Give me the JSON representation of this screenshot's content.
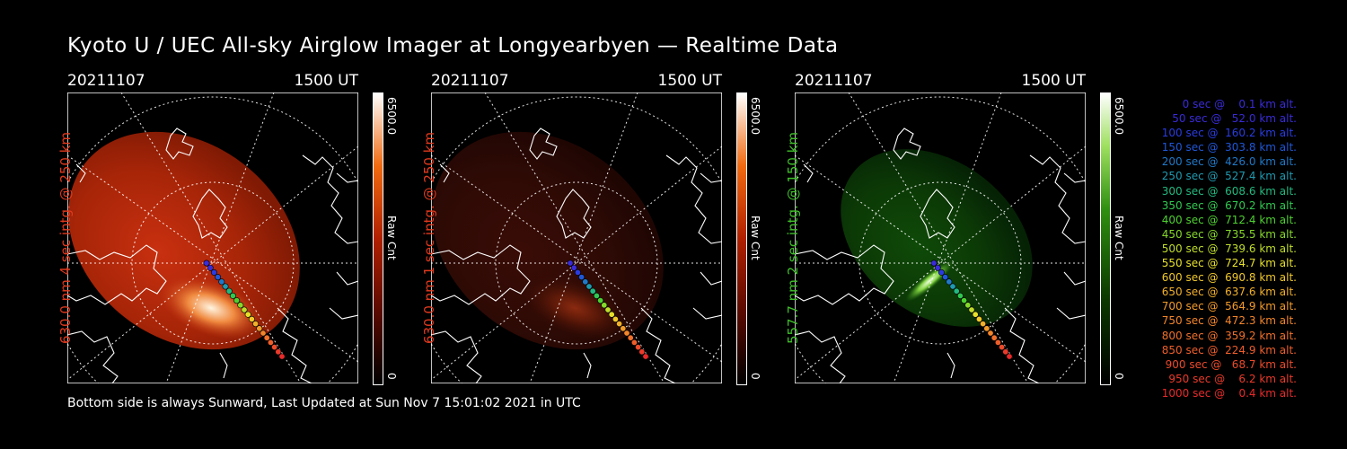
{
  "title": "Kyoto U / UEC All-sky Airglow Imager at Longyearbyen — Realtime Data",
  "footer": "Bottom side is always Sunward, Last Updated at Sun Nov  7 15:01:02 2021 in UTC",
  "panels": [
    {
      "date": "20211107",
      "time": "1500 UT",
      "label": "630.0 nm 4 sec intg. @ 250 km",
      "label_color": "#e03a1e",
      "cbar_max": "6500.0",
      "cbar_unit": "Raw Cnt",
      "cbar_zero": "0",
      "theme": "red",
      "intensity": "bright"
    },
    {
      "date": "20211107",
      "time": "1500 UT",
      "label": "630.0 nm 1 sec intg. @ 250 km",
      "label_color": "#e03a1e",
      "cbar_max": "6500.0",
      "cbar_unit": "Raw Cnt",
      "cbar_zero": "0",
      "theme": "red",
      "intensity": "dim"
    },
    {
      "date": "20211107",
      "time": "1500 UT",
      "label": "557.7 nm 2 sec intg. @ 150 km",
      "label_color": "#3fbf2a",
      "cbar_max": "6500.0",
      "cbar_unit": "Raw Cnt",
      "cbar_zero": "0",
      "theme": "green",
      "intensity": "bright"
    }
  ],
  "legend": [
    {
      "text": "   0 sec @    0.1 km alt.",
      "color": "#3a2bd8"
    },
    {
      "text": "  50 sec @   52.0 km alt.",
      "color": "#3a2bd8"
    },
    {
      "text": " 100 sec @  160.2 km alt.",
      "color": "#2a3ce0"
    },
    {
      "text": " 150 sec @  303.8 km alt.",
      "color": "#1f57d8"
    },
    {
      "text": " 200 sec @  426.0 km alt.",
      "color": "#1f79c8"
    },
    {
      "text": " 250 sec @  527.4 km alt.",
      "color": "#1f9ab0"
    },
    {
      "text": " 300 sec @  608.6 km alt.",
      "color": "#22b980"
    },
    {
      "text": " 350 sec @  670.2 km alt.",
      "color": "#30c850"
    },
    {
      "text": " 400 sec @  712.4 km alt.",
      "color": "#4ed030"
    },
    {
      "text": " 450 sec @  735.5 km alt.",
      "color": "#86d82a"
    },
    {
      "text": " 500 sec @  739.6 km alt.",
      "color": "#bfdd2a"
    },
    {
      "text": " 550 sec @  724.7 km alt.",
      "color": "#e6e02a"
    },
    {
      "text": " 600 sec @  690.8 km alt.",
      "color": "#f0c82a"
    },
    {
      "text": " 650 sec @  637.6 km alt.",
      "color": "#f2b02a"
    },
    {
      "text": " 700 sec @  564.9 km alt.",
      "color": "#f29a2a"
    },
    {
      "text": " 750 sec @  472.3 km alt.",
      "color": "#f2852a"
    },
    {
      "text": " 800 sec @  359.2 km alt.",
      "color": "#f0702a"
    },
    {
      "text": " 850 sec @  224.9 km alt.",
      "color": "#ee5e2a"
    },
    {
      "text": " 900 sec @   68.7 km alt.",
      "color": "#ec4a2a"
    },
    {
      "text": " 950 sec @    6.2 km alt.",
      "color": "#ea3a2a"
    },
    {
      "text": "1000 sec @    0.4 km alt.",
      "color": "#e82a2a"
    }
  ]
}
